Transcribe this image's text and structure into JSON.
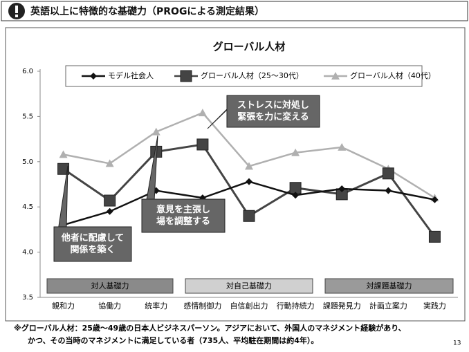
{
  "header": {
    "title": "英語以上に特徴的な基礎力（PROGによる測定結果）"
  },
  "chart_data": {
    "type": "line",
    "title": "グローバル人材",
    "categories": [
      "親和力",
      "協働力",
      "統率力",
      "感情制御力",
      "自信創出力",
      "行動持続力",
      "課題発見力",
      "計画立案力",
      "実践力"
    ],
    "series": [
      {
        "name": "モデル社会人",
        "color": "#111111",
        "marker": "diamond",
        "values": [
          4.3,
          4.45,
          4.68,
          4.6,
          4.78,
          4.63,
          4.7,
          4.68,
          4.58
        ]
      },
      {
        "name": "グローバル人材（25～30代）",
        "color": "#444444",
        "marker": "square",
        "values": [
          4.92,
          4.57,
          5.11,
          5.19,
          4.4,
          4.71,
          4.64,
          4.87,
          4.17
        ]
      },
      {
        "name": "グローバル人材（40代）",
        "color": "#b0b0b0",
        "marker": "triangle",
        "values": [
          5.08,
          4.98,
          5.33,
          5.54,
          4.95,
          5.1,
          5.16,
          4.92,
          4.6
        ]
      }
    ],
    "ylim": [
      3.5,
      6.0
    ],
    "yticks": [
      {
        "value": 3.5,
        "label": "3.5"
      },
      {
        "value": 4.0,
        "label": "4.0"
      },
      {
        "value": 4.5,
        "label": "4.5"
      },
      {
        "value": 5.0,
        "label": "5.0"
      },
      {
        "value": 5.5,
        "label": "5.5"
      },
      {
        "value": 6.0,
        "label": "6.0"
      }
    ],
    "grid": false,
    "groups": [
      "対人基礎力",
      "対自己基礎力",
      "対課題基礎力"
    ],
    "annotations": [
      {
        "lines": [
          "ストレスに対処し",
          "緊張を力に変える"
        ]
      },
      {
        "lines": [
          "意見を主張し",
          "場を調整する"
        ]
      },
      {
        "lines": [
          "他者に配慮して",
          "関係を築く"
        ]
      }
    ]
  },
  "footnote": [
    "※グローバル人材：25歳～49歳の日本人ビジネスパーソン。アジアにおいて、外国人のマネジメント経験があり、",
    "かつ、その当時のマネジメントに満足している者（735人、平均駐在期間は約4年）。"
  ],
  "page_number": "13"
}
